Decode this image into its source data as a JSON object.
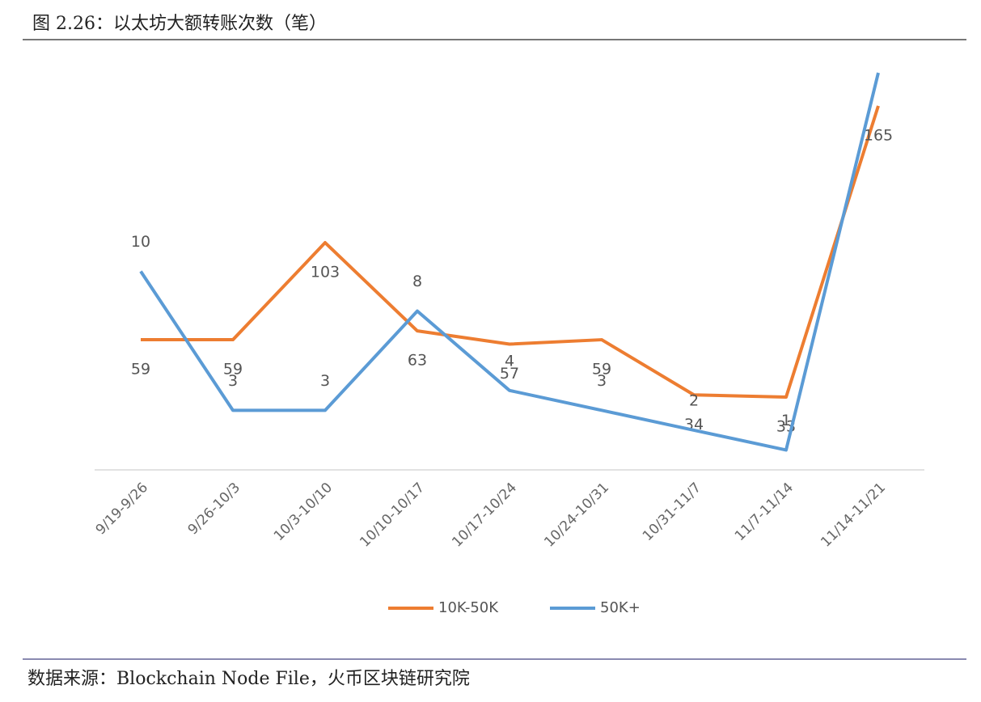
{
  "chart_data": {
    "type": "line",
    "title": "图 2.26：以太坊大额转账次数（笔）",
    "source": "数据来源：Blockchain Node File，火币区块链研究院",
    "categories": [
      "9/19-9/26",
      "9/26-10/3",
      "10/3-10/10",
      "10/10-10/17",
      "10/17-10/24",
      "10/24-10/31",
      "10/31-11/7",
      "11/7-11/14",
      "11/14-11/21"
    ],
    "series": [
      {
        "name": "10K-50K",
        "color": "#ed7d31",
        "values": [
          59,
          59,
          103,
          63,
          57,
          59,
          34,
          33,
          165
        ],
        "value_labels": [
          "59",
          "59",
          "103",
          "63",
          "57",
          "59",
          "34",
          "33",
          "165"
        ]
      },
      {
        "name": "50K+",
        "color": "#5b9bd5",
        "axis": "y2",
        "values": [
          10,
          3,
          3,
          8,
          4,
          3,
          2,
          1,
          20
        ],
        "value_labels": [
          "10",
          "3",
          "3",
          "8",
          "4",
          "3",
          "2",
          "1",
          null
        ]
      }
    ],
    "ylim": [
      0,
      180
    ],
    "y2lim": [
      0,
      20
    ],
    "legend": "bottom"
  }
}
